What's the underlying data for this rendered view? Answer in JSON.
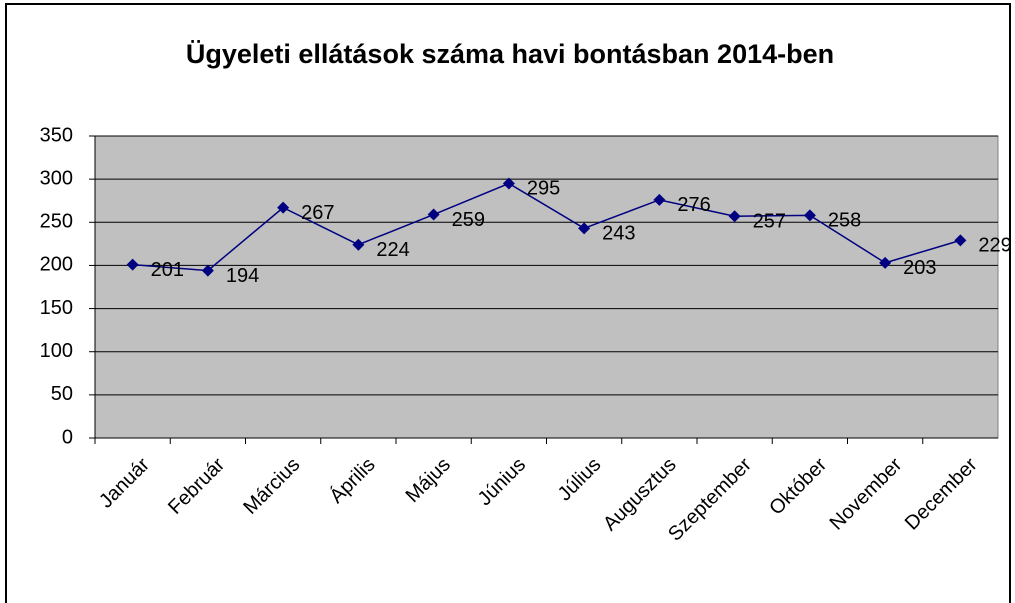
{
  "chart_data": {
    "type": "line",
    "title": "Ügyeleti ellátások száma havi bontásban 2014-ben",
    "categories": [
      "Január",
      "Február",
      "Március",
      "Április",
      "Május",
      "Június",
      "Július",
      "Augusztus",
      "Szeptember",
      "Október",
      "November",
      "December"
    ],
    "series": [
      {
        "name": "Ügyeleti ellátások",
        "color": "#000080",
        "values": [
          201,
          194,
          267,
          224,
          259,
          295,
          243,
          276,
          257,
          258,
          203,
          229
        ]
      }
    ],
    "ylim": [
      0,
      350
    ],
    "yticks": [
      0,
      50,
      100,
      150,
      200,
      250,
      300,
      350
    ],
    "grid": true,
    "plot_background": "#c0c0c0"
  }
}
